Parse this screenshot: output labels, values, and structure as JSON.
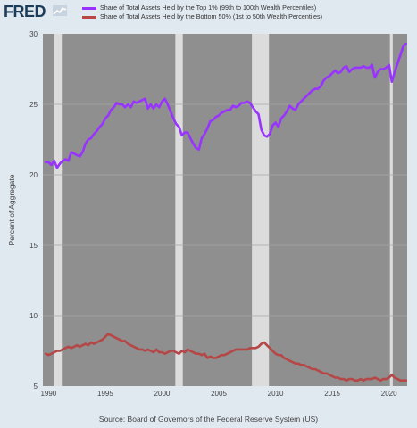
{
  "header": {
    "logo_text": "FRED"
  },
  "chart_data": {
    "type": "line",
    "title": "",
    "xlabel": "",
    "ylabel": "Percent of Aggregate",
    "xlim": [
      1989.5,
      2021.6
    ],
    "ylim": [
      5,
      30
    ],
    "x_ticks": [
      1990,
      1995,
      2000,
      2005,
      2010,
      2015,
      2020
    ],
    "x_tick_labels": [
      "1990",
      "1995",
      "2000",
      "2005",
      "2010",
      "2015",
      "2020"
    ],
    "y_ticks": [
      5,
      10,
      15,
      20,
      25,
      30
    ],
    "y_tick_labels": [
      "5",
      "10",
      "15",
      "20",
      "25",
      "30"
    ],
    "grid": true,
    "legend_placement": "top",
    "recessions": [
      {
        "start": 1990.5,
        "end": 1991.17
      },
      {
        "start": 2001.17,
        "end": 2001.83
      },
      {
        "start": 2007.92,
        "end": 2009.42
      },
      {
        "start": 2020.08,
        "end": 2020.33
      }
    ],
    "series": [
      {
        "name": "Share of Total Assets Held by the Top 1% (99th to 100th Wealth Percentiles)",
        "color": "#9933ff",
        "points": [
          [
            1989.75,
            20.9
          ],
          [
            1990.0,
            20.9
          ],
          [
            1990.25,
            20.7
          ],
          [
            1990.5,
            21.0
          ],
          [
            1990.75,
            20.5
          ],
          [
            1991.0,
            20.8
          ],
          [
            1991.25,
            21.0
          ],
          [
            1991.5,
            21.1
          ],
          [
            1991.75,
            21.0
          ],
          [
            1992.0,
            21.6
          ],
          [
            1992.25,
            21.5
          ],
          [
            1992.5,
            21.4
          ],
          [
            1992.75,
            21.3
          ],
          [
            1993.0,
            21.6
          ],
          [
            1993.25,
            22.2
          ],
          [
            1993.5,
            22.5
          ],
          [
            1993.75,
            22.6
          ],
          [
            1994.0,
            22.9
          ],
          [
            1994.25,
            23.1
          ],
          [
            1994.5,
            23.4
          ],
          [
            1994.75,
            23.6
          ],
          [
            1995.0,
            24.0
          ],
          [
            1995.25,
            24.2
          ],
          [
            1995.5,
            24.6
          ],
          [
            1995.75,
            24.8
          ],
          [
            1996.0,
            25.1
          ],
          [
            1996.25,
            25.0
          ],
          [
            1996.5,
            25.0
          ],
          [
            1996.75,
            24.8
          ],
          [
            1997.0,
            25.0
          ],
          [
            1997.25,
            24.8
          ],
          [
            1997.5,
            25.2
          ],
          [
            1997.75,
            25.1
          ],
          [
            1998.0,
            25.2
          ],
          [
            1998.25,
            25.3
          ],
          [
            1998.5,
            25.4
          ],
          [
            1998.75,
            24.7
          ],
          [
            1999.0,
            25.0
          ],
          [
            1999.25,
            24.7
          ],
          [
            1999.5,
            25.0
          ],
          [
            1999.75,
            24.8
          ],
          [
            2000.0,
            25.2
          ],
          [
            2000.25,
            25.4
          ],
          [
            2000.5,
            25.0
          ],
          [
            2000.75,
            24.5
          ],
          [
            2001.0,
            24.0
          ],
          [
            2001.25,
            23.6
          ],
          [
            2001.5,
            23.4
          ],
          [
            2001.75,
            22.8
          ],
          [
            2002.0,
            23.0
          ],
          [
            2002.25,
            23.0
          ],
          [
            2002.5,
            22.6
          ],
          [
            2002.75,
            22.2
          ],
          [
            2003.0,
            21.9
          ],
          [
            2003.25,
            21.8
          ],
          [
            2003.5,
            22.6
          ],
          [
            2003.75,
            22.9
          ],
          [
            2004.0,
            23.3
          ],
          [
            2004.25,
            23.8
          ],
          [
            2004.5,
            23.9
          ],
          [
            2004.75,
            24.1
          ],
          [
            2005.0,
            24.2
          ],
          [
            2005.25,
            24.4
          ],
          [
            2005.5,
            24.5
          ],
          [
            2005.75,
            24.6
          ],
          [
            2006.0,
            24.6
          ],
          [
            2006.25,
            24.9
          ],
          [
            2006.5,
            24.8
          ],
          [
            2006.75,
            24.9
          ],
          [
            2007.0,
            25.1
          ],
          [
            2007.25,
            25.1
          ],
          [
            2007.5,
            25.2
          ],
          [
            2007.75,
            25.1
          ],
          [
            2008.0,
            24.8
          ],
          [
            2008.25,
            24.5
          ],
          [
            2008.5,
            24.3
          ],
          [
            2008.75,
            23.2
          ],
          [
            2009.0,
            22.8
          ],
          [
            2009.25,
            22.7
          ],
          [
            2009.5,
            22.9
          ],
          [
            2009.75,
            23.5
          ],
          [
            2010.0,
            23.7
          ],
          [
            2010.25,
            23.4
          ],
          [
            2010.5,
            24.0
          ],
          [
            2010.75,
            24.2
          ],
          [
            2011.0,
            24.5
          ],
          [
            2011.25,
            24.9
          ],
          [
            2011.5,
            24.7
          ],
          [
            2011.75,
            24.6
          ],
          [
            2012.0,
            25.0
          ],
          [
            2012.25,
            25.2
          ],
          [
            2012.5,
            25.4
          ],
          [
            2012.75,
            25.6
          ],
          [
            2013.0,
            25.8
          ],
          [
            2013.25,
            26.0
          ],
          [
            2013.5,
            26.1
          ],
          [
            2013.75,
            26.1
          ],
          [
            2014.0,
            26.3
          ],
          [
            2014.25,
            26.7
          ],
          [
            2014.5,
            26.9
          ],
          [
            2014.75,
            27.0
          ],
          [
            2015.0,
            27.2
          ],
          [
            2015.25,
            27.4
          ],
          [
            2015.5,
            27.2
          ],
          [
            2015.75,
            27.3
          ],
          [
            2016.0,
            27.6
          ],
          [
            2016.25,
            27.7
          ],
          [
            2016.5,
            27.3
          ],
          [
            2016.75,
            27.5
          ],
          [
            2017.0,
            27.6
          ],
          [
            2017.25,
            27.6
          ],
          [
            2017.5,
            27.6
          ],
          [
            2017.75,
            27.7
          ],
          [
            2018.0,
            27.6
          ],
          [
            2018.25,
            27.6
          ],
          [
            2018.5,
            27.8
          ],
          [
            2018.75,
            26.9
          ],
          [
            2019.0,
            27.3
          ],
          [
            2019.25,
            27.5
          ],
          [
            2019.5,
            27.5
          ],
          [
            2019.75,
            27.6
          ],
          [
            2020.0,
            27.8
          ],
          [
            2020.25,
            26.6
          ],
          [
            2020.5,
            27.3
          ],
          [
            2020.75,
            27.9
          ],
          [
            2021.0,
            28.5
          ],
          [
            2021.25,
            29.1
          ],
          [
            2021.5,
            29.3
          ]
        ]
      },
      {
        "name": "Share of Total Assets Held by the Bottom 50% (1st to 50th Wealth Percentiles)",
        "color": "#b54747",
        "points": [
          [
            1989.75,
            7.3
          ],
          [
            1990.0,
            7.2
          ],
          [
            1990.25,
            7.3
          ],
          [
            1990.5,
            7.4
          ],
          [
            1990.75,
            7.5
          ],
          [
            1991.0,
            7.5
          ],
          [
            1991.25,
            7.6
          ],
          [
            1991.5,
            7.7
          ],
          [
            1991.75,
            7.8
          ],
          [
            1992.0,
            7.7
          ],
          [
            1992.25,
            7.8
          ],
          [
            1992.5,
            7.9
          ],
          [
            1992.75,
            7.8
          ],
          [
            1993.0,
            7.9
          ],
          [
            1993.25,
            8.0
          ],
          [
            1993.5,
            7.9
          ],
          [
            1993.75,
            8.1
          ],
          [
            1994.0,
            8.0
          ],
          [
            1994.25,
            8.1
          ],
          [
            1994.5,
            8.2
          ],
          [
            1994.75,
            8.3
          ],
          [
            1995.0,
            8.5
          ],
          [
            1995.25,
            8.7
          ],
          [
            1995.5,
            8.6
          ],
          [
            1995.75,
            8.5
          ],
          [
            1996.0,
            8.4
          ],
          [
            1996.25,
            8.3
          ],
          [
            1996.5,
            8.2
          ],
          [
            1996.75,
            8.2
          ],
          [
            1997.0,
            8.0
          ],
          [
            1997.25,
            7.9
          ],
          [
            1997.5,
            7.8
          ],
          [
            1997.75,
            7.7
          ],
          [
            1998.0,
            7.6
          ],
          [
            1998.25,
            7.6
          ],
          [
            1998.5,
            7.5
          ],
          [
            1998.75,
            7.6
          ],
          [
            1999.0,
            7.5
          ],
          [
            1999.25,
            7.4
          ],
          [
            1999.5,
            7.6
          ],
          [
            1999.75,
            7.4
          ],
          [
            2000.0,
            7.4
          ],
          [
            2000.25,
            7.3
          ],
          [
            2000.5,
            7.4
          ],
          [
            2000.75,
            7.5
          ],
          [
            2001.0,
            7.5
          ],
          [
            2001.25,
            7.4
          ],
          [
            2001.5,
            7.3
          ],
          [
            2001.75,
            7.5
          ],
          [
            2002.0,
            7.4
          ],
          [
            2002.25,
            7.6
          ],
          [
            2002.5,
            7.5
          ],
          [
            2002.75,
            7.4
          ],
          [
            2003.0,
            7.3
          ],
          [
            2003.25,
            7.3
          ],
          [
            2003.5,
            7.2
          ],
          [
            2003.75,
            7.3
          ],
          [
            2004.0,
            7.0
          ],
          [
            2004.25,
            7.1
          ],
          [
            2004.5,
            7.0
          ],
          [
            2004.75,
            7.0
          ],
          [
            2005.0,
            7.1
          ],
          [
            2005.25,
            7.2
          ],
          [
            2005.5,
            7.2
          ],
          [
            2005.75,
            7.3
          ],
          [
            2006.0,
            7.4
          ],
          [
            2006.25,
            7.5
          ],
          [
            2006.5,
            7.6
          ],
          [
            2006.75,
            7.6
          ],
          [
            2007.0,
            7.6
          ],
          [
            2007.25,
            7.6
          ],
          [
            2007.5,
            7.6
          ],
          [
            2007.75,
            7.7
          ],
          [
            2008.0,
            7.7
          ],
          [
            2008.25,
            7.7
          ],
          [
            2008.5,
            7.8
          ],
          [
            2008.75,
            8.0
          ],
          [
            2009.0,
            8.1
          ],
          [
            2009.25,
            7.9
          ],
          [
            2009.5,
            7.7
          ],
          [
            2009.75,
            7.5
          ],
          [
            2010.0,
            7.3
          ],
          [
            2010.25,
            7.2
          ],
          [
            2010.5,
            7.2
          ],
          [
            2010.75,
            7.0
          ],
          [
            2011.0,
            6.9
          ],
          [
            2011.25,
            6.8
          ],
          [
            2011.5,
            6.7
          ],
          [
            2011.75,
            6.6
          ],
          [
            2012.0,
            6.6
          ],
          [
            2012.25,
            6.5
          ],
          [
            2012.5,
            6.5
          ],
          [
            2012.75,
            6.4
          ],
          [
            2013.0,
            6.3
          ],
          [
            2013.25,
            6.2
          ],
          [
            2013.5,
            6.2
          ],
          [
            2013.75,
            6.1
          ],
          [
            2014.0,
            6.0
          ],
          [
            2014.25,
            5.9
          ],
          [
            2014.5,
            5.9
          ],
          [
            2014.75,
            5.8
          ],
          [
            2015.0,
            5.7
          ],
          [
            2015.25,
            5.6
          ],
          [
            2015.5,
            5.6
          ],
          [
            2015.75,
            5.5
          ],
          [
            2016.0,
            5.5
          ],
          [
            2016.25,
            5.4
          ],
          [
            2016.5,
            5.5
          ],
          [
            2016.75,
            5.5
          ],
          [
            2017.0,
            5.4
          ],
          [
            2017.25,
            5.4
          ],
          [
            2017.5,
            5.5
          ],
          [
            2017.75,
            5.4
          ],
          [
            2018.0,
            5.5
          ],
          [
            2018.25,
            5.5
          ],
          [
            2018.5,
            5.5
          ],
          [
            2018.75,
            5.6
          ],
          [
            2019.0,
            5.5
          ],
          [
            2019.25,
            5.4
          ],
          [
            2019.5,
            5.5
          ],
          [
            2019.75,
            5.5
          ],
          [
            2020.0,
            5.6
          ],
          [
            2020.25,
            5.8
          ],
          [
            2020.5,
            5.6
          ],
          [
            2020.75,
            5.5
          ],
          [
            2021.0,
            5.4
          ],
          [
            2021.25,
            5.4
          ],
          [
            2021.5,
            5.4
          ]
        ]
      }
    ]
  },
  "footer": {
    "source_text": "Source: Board of Governors of the Federal Reserve System (US)"
  }
}
